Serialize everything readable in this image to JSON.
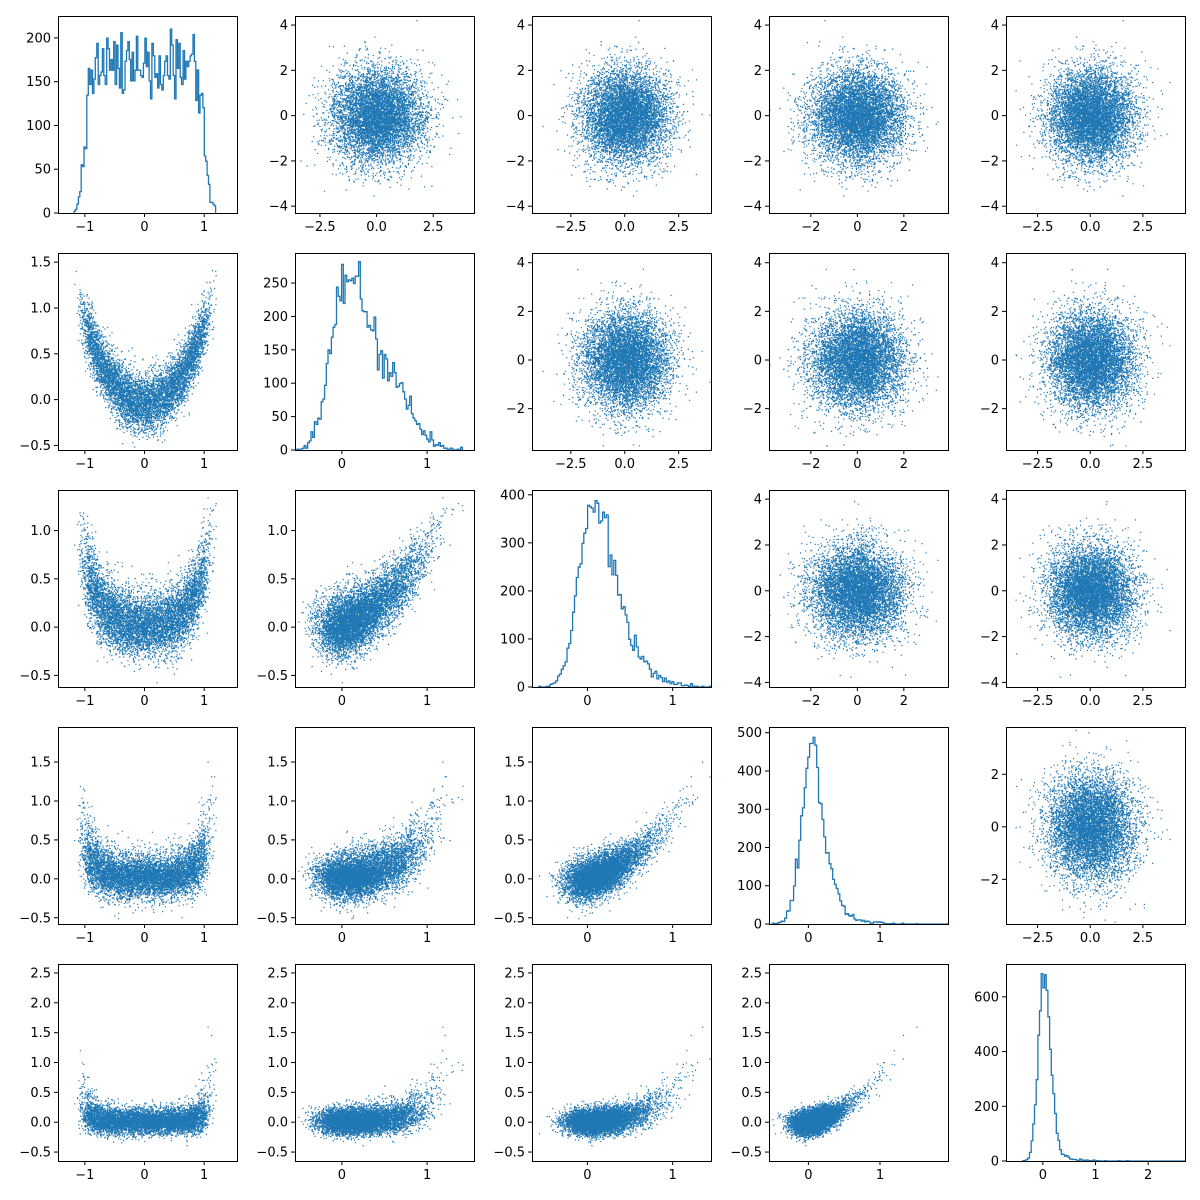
{
  "figure": {
    "background": "#ffffff"
  },
  "style": {
    "color": "#1f77b4"
  },
  "chart_data": [
    {
      "row": 0,
      "col": 0,
      "type": "histogram",
      "dist": "x0",
      "xlim": [
        -1.45,
        1.55
      ],
      "xticks": [
        -1,
        0,
        1
      ],
      "ylim": [
        0,
        225
      ],
      "yticks": [
        0,
        50,
        100,
        150,
        200
      ],
      "hist_peak": 210
    },
    {
      "row": 0,
      "col": 1,
      "type": "scatter",
      "x": "x1",
      "y": "x0_noise",
      "xlim": [
        -3.6,
        4.3
      ],
      "xticks": [
        -2.5,
        0.0,
        2.5
      ],
      "xtick_labels": [
        "−2.5",
        "0.0",
        "2.5"
      ],
      "ylim": [
        -4.3,
        4.4
      ],
      "yticks": [
        -4,
        -2,
        0,
        2,
        4
      ]
    },
    {
      "row": 0,
      "col": 2,
      "type": "scatter",
      "x": "x2",
      "y": "x0_noise",
      "xlim": [
        -4.3,
        4.0
      ],
      "xticks": [
        -2.5,
        0.0,
        2.5
      ],
      "xtick_labels": [
        "−2.5",
        "0.0",
        "2.5"
      ],
      "ylim": [
        -4.3,
        4.4
      ],
      "yticks": [
        -4,
        -2,
        0,
        2,
        4
      ]
    },
    {
      "row": 0,
      "col": 3,
      "type": "scatter",
      "x": "x3",
      "y": "x0_noise",
      "xlim": [
        -3.8,
        3.9
      ],
      "xticks": [
        -2,
        0,
        2
      ],
      "ylim": [
        -4.3,
        4.4
      ],
      "yticks": [
        -4,
        -2,
        0,
        2,
        4
      ]
    },
    {
      "row": 0,
      "col": 4,
      "type": "scatter",
      "x": "x4",
      "y": "x0_noise",
      "xlim": [
        -4.0,
        4.5
      ],
      "xticks": [
        -2.5,
        0.0,
        2.5
      ],
      "xtick_labels": [
        "−2.5",
        "0.0",
        "2.5"
      ],
      "ylim": [
        -4.3,
        4.4
      ],
      "yticks": [
        -4,
        -2,
        0,
        2,
        4
      ]
    },
    {
      "row": 1,
      "col": 0,
      "type": "scatter",
      "x": "x0",
      "y": "x1",
      "xlim": [
        -1.45,
        1.55
      ],
      "xticks": [
        -1,
        0,
        1
      ],
      "ylim": [
        -0.55,
        1.6
      ],
      "yticks": [
        -0.5,
        0.0,
        0.5,
        1.0,
        1.5
      ]
    },
    {
      "row": 1,
      "col": 1,
      "type": "histogram",
      "dist": "x1",
      "xlim": [
        -0.55,
        1.55
      ],
      "xticks": [
        0,
        1
      ],
      "ylim": [
        0,
        295
      ],
      "yticks": [
        0,
        50,
        100,
        150,
        200,
        250
      ],
      "hist_peak": 282
    },
    {
      "row": 1,
      "col": 2,
      "type": "scatter",
      "x": "x2",
      "y": "x1_noise",
      "xlim": [
        -4.3,
        4.0
      ],
      "xticks": [
        -2.5,
        0.0,
        2.5
      ],
      "xtick_labels": [
        "−2.5",
        "0.0",
        "2.5"
      ],
      "ylim": [
        -3.7,
        4.4
      ],
      "yticks": [
        -2,
        0,
        2,
        4
      ]
    },
    {
      "row": 1,
      "col": 3,
      "type": "scatter",
      "x": "x3",
      "y": "x1_noise",
      "xlim": [
        -3.8,
        3.9
      ],
      "xticks": [
        -2,
        0,
        2
      ],
      "ylim": [
        -3.7,
        4.4
      ],
      "yticks": [
        -2,
        0,
        2,
        4
      ]
    },
    {
      "row": 1,
      "col": 4,
      "type": "scatter",
      "x": "x4",
      "y": "x1_noise",
      "xlim": [
        -4.0,
        4.5
      ],
      "xticks": [
        -2.5,
        0.0,
        2.5
      ],
      "xtick_labels": [
        "−2.5",
        "0.0",
        "2.5"
      ],
      "ylim": [
        -3.7,
        4.4
      ],
      "yticks": [
        -2,
        0,
        2,
        4
      ]
    },
    {
      "row": 2,
      "col": 0,
      "type": "scatter",
      "x": "x0",
      "y": "x2",
      "xlim": [
        -1.45,
        1.55
      ],
      "xticks": [
        -1,
        0,
        1
      ],
      "ylim": [
        -0.62,
        1.42
      ],
      "yticks": [
        -0.5,
        0.0,
        0.5,
        1.0
      ]
    },
    {
      "row": 2,
      "col": 1,
      "type": "scatter",
      "x": "x1",
      "y": "x2",
      "xlim": [
        -0.55,
        1.55
      ],
      "xticks": [
        0,
        1
      ],
      "ylim": [
        -0.62,
        1.42
      ],
      "yticks": [
        -0.5,
        0.0,
        0.5,
        1.0
      ]
    },
    {
      "row": 2,
      "col": 2,
      "type": "histogram",
      "dist": "x2",
      "xlim": [
        -0.65,
        1.45
      ],
      "xticks": [
        0,
        1
      ],
      "ylim": [
        0,
        410
      ],
      "yticks": [
        0,
        100,
        200,
        300,
        400
      ],
      "hist_peak": 388
    },
    {
      "row": 2,
      "col": 3,
      "type": "scatter",
      "x": "x3",
      "y": "x2_noise",
      "xlim": [
        -3.8,
        3.9
      ],
      "xticks": [
        -2,
        0,
        2
      ],
      "ylim": [
        -4.2,
        4.4
      ],
      "yticks": [
        -4,
        -2,
        0,
        2,
        4
      ]
    },
    {
      "row": 2,
      "col": 4,
      "type": "scatter",
      "x": "x4",
      "y": "x2_noise",
      "xlim": [
        -4.0,
        4.5
      ],
      "xticks": [
        -2.5,
        0.0,
        2.5
      ],
      "xtick_labels": [
        "−2.5",
        "0.0",
        "2.5"
      ],
      "ylim": [
        -4.2,
        4.4
      ],
      "yticks": [
        -4,
        -2,
        0,
        2,
        4
      ]
    },
    {
      "row": 3,
      "col": 0,
      "type": "scatter",
      "x": "x0",
      "y": "x3",
      "xlim": [
        -1.45,
        1.55
      ],
      "xticks": [
        -1,
        0,
        1
      ],
      "ylim": [
        -0.58,
        1.95
      ],
      "yticks": [
        -0.5,
        0.0,
        0.5,
        1.0,
        1.5
      ]
    },
    {
      "row": 3,
      "col": 1,
      "type": "scatter",
      "x": "x1",
      "y": "x3",
      "xlim": [
        -0.55,
        1.55
      ],
      "xticks": [
        0,
        1
      ],
      "ylim": [
        -0.58,
        1.95
      ],
      "yticks": [
        -0.5,
        0.0,
        0.5,
        1.0,
        1.5
      ]
    },
    {
      "row": 3,
      "col": 2,
      "type": "scatter",
      "x": "x2",
      "y": "x3",
      "xlim": [
        -0.65,
        1.45
      ],
      "xticks": [
        0,
        1
      ],
      "ylim": [
        -0.58,
        1.95
      ],
      "yticks": [
        -0.5,
        0.0,
        0.5,
        1.0,
        1.5
      ]
    },
    {
      "row": 3,
      "col": 3,
      "type": "histogram",
      "dist": "x3",
      "xlim": [
        -0.55,
        1.95
      ],
      "xticks": [
        0,
        1
      ],
      "ylim": [
        0,
        515
      ],
      "yticks": [
        0,
        100,
        200,
        300,
        400,
        500
      ],
      "hist_peak": 488
    },
    {
      "row": 3,
      "col": 4,
      "type": "scatter",
      "x": "x4",
      "y": "x3_noise",
      "xlim": [
        -4.0,
        4.5
      ],
      "xticks": [
        -2.5,
        0.0,
        2.5
      ],
      "xtick_labels": [
        "−2.5",
        "0.0",
        "2.5"
      ],
      "ylim": [
        -3.7,
        3.8
      ],
      "yticks": [
        -2,
        0,
        2
      ]
    },
    {
      "row": 4,
      "col": 0,
      "type": "scatter",
      "x": "x0",
      "y": "x4",
      "xlim": [
        -1.45,
        1.55
      ],
      "xticks": [
        -1,
        0,
        1
      ],
      "ylim": [
        -0.65,
        2.65
      ],
      "yticks": [
        -0.5,
        0.0,
        0.5,
        1.0,
        1.5,
        2.0,
        2.5
      ]
    },
    {
      "row": 4,
      "col": 1,
      "type": "scatter",
      "x": "x1",
      "y": "x4",
      "xlim": [
        -0.55,
        1.55
      ],
      "xticks": [
        0,
        1
      ],
      "ylim": [
        -0.65,
        2.65
      ],
      "yticks": [
        -0.5,
        0.0,
        0.5,
        1.0,
        1.5,
        2.0,
        2.5
      ]
    },
    {
      "row": 4,
      "col": 2,
      "type": "scatter",
      "x": "x2",
      "y": "x4",
      "xlim": [
        -0.65,
        1.45
      ],
      "xticks": [
        0,
        1
      ],
      "ylim": [
        -0.65,
        2.65
      ],
      "yticks": [
        -0.5,
        0.0,
        0.5,
        1.0,
        1.5,
        2.0,
        2.5
      ]
    },
    {
      "row": 4,
      "col": 3,
      "type": "scatter",
      "x": "x3",
      "y": "x4",
      "xlim": [
        -0.55,
        1.95
      ],
      "xticks": [
        0,
        1
      ],
      "ylim": [
        -0.65,
        2.65
      ],
      "yticks": [
        -0.5,
        0.0,
        0.5,
        1.0,
        1.5,
        2.0,
        2.5
      ]
    },
    {
      "row": 4,
      "col": 4,
      "type": "histogram",
      "dist": "x4",
      "xlim": [
        -0.7,
        2.7
      ],
      "xticks": [
        0,
        1,
        2
      ],
      "ylim": [
        0,
        720
      ],
      "yticks": [
        0,
        200,
        400,
        600
      ],
      "hist_peak": 685
    }
  ]
}
